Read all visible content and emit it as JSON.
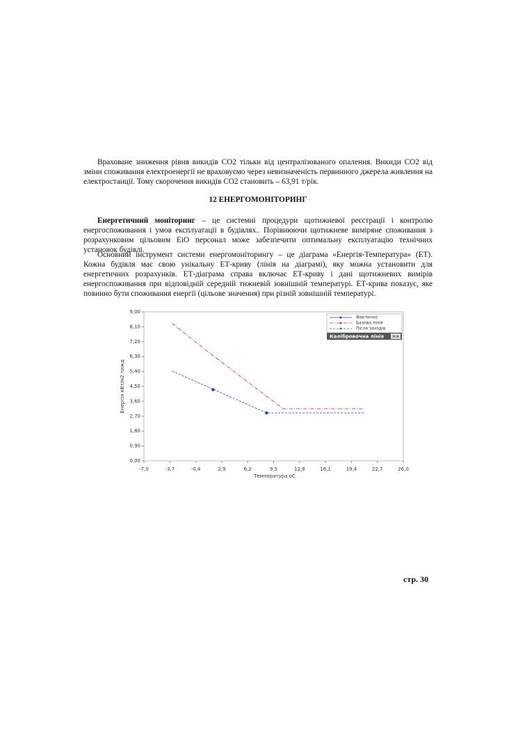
{
  "document": {
    "paragraph_1": "Враховане зниження рівня викидів СО2 тільки від централізованого опалення. Викиди СО2 від зміни споживання електроенергії не враховуємо через невизначеність первинного джерела живлення на електростанції. Тому скорочення викидів СО2 становить – 63,91 т/рік.",
    "heading": "12 ЕНЕРГОМОНІТОРИНГ",
    "paragraph_2_bold": "Енергетичний моніторинг",
    "paragraph_2": " – це системні процедури щотижневої реєстрації і контролю енергоспоживання і умов експлуатації в будівлях.. Порівнюючи щотижневе виміряне споживання з розрахунковим цільовим ЕіО персонал може забезпечити оптимальну експлуатацію технічних установок будівлі.",
    "paragraph_3": "Основний інструмент системи енергомоніторингу – це діаграма «Енергія-Температура» (ЕТ). Кожна будівля має свою унікальну ЕТ-криву (лінія на діаграмі), яку можна установити для енергетичних розрахунків. ЕТ-діаграма справа включає ЕТ-криву і дані щотижневих вимірів енергоспоживання при відповідній середній тижневій зовнішній температурі. ЕТ-крива показує, яке повинно бути споживання енергії (цільове значення) при різній зовнішній температурі.",
    "page_number": "стр. 30"
  },
  "chart_data": {
    "type": "line",
    "x_label": "Температура оС",
    "y_label": "Енергія кВт/м2 тижд",
    "legend_button": "Калібровочна лінія",
    "legend_button_arrow": ">>",
    "legend": "top-right",
    "grid": false,
    "xlim": [
      -7,
      26
    ],
    "ylim": [
      0,
      9
    ],
    "xticks": [
      {
        "value": -7,
        "label": "-7,0"
      },
      {
        "value": -3.7,
        "label": "-3,7"
      },
      {
        "value": -0.4,
        "label": "-0,4"
      },
      {
        "value": 2.9,
        "label": "2,9"
      },
      {
        "value": 6.2,
        "label": "6,2"
      },
      {
        "value": 9.5,
        "label": "9,5"
      },
      {
        "value": 12.8,
        "label": "12,8"
      },
      {
        "value": 16.1,
        "label": "16,1"
      },
      {
        "value": 19.4,
        "label": "19,4"
      },
      {
        "value": 22.7,
        "label": "22,7"
      },
      {
        "value": 26,
        "label": "26,0"
      }
    ],
    "yticks": [
      {
        "value": 0,
        "label": "0,00"
      },
      {
        "value": 0.9,
        "label": "0,90"
      },
      {
        "value": 1.8,
        "label": "1,80"
      },
      {
        "value": 2.7,
        "label": "2,70"
      },
      {
        "value": 3.6,
        "label": "3,60"
      },
      {
        "value": 4.5,
        "label": "4,50"
      },
      {
        "value": 5.4,
        "label": "5,40"
      },
      {
        "value": 6.3,
        "label": "6,30"
      },
      {
        "value": 7.2,
        "label": "7,20"
      },
      {
        "value": 8.1,
        "label": "8,10"
      },
      {
        "value": 9,
        "label": "9,00"
      }
    ],
    "series": [
      {
        "name": "Фактично",
        "color": "#1f3fbf",
        "mode": "markers",
        "x": [
          1.8,
          8.6
        ],
        "values": [
          4.3,
          2.9
        ]
      },
      {
        "name": "Базова лінія",
        "color": "#e03030",
        "mode": "lines",
        "dash": "5,2,1,2",
        "x": [
          -3.4,
          1.8,
          10.7,
          21.0
        ],
        "values": [
          8.3,
          6.35,
          3.15,
          3.15
        ]
      },
      {
        "name": "Після заходів",
        "color": "#3a4fd8",
        "mode": "lines",
        "dash": "3,2",
        "x": [
          -3.4,
          8.6,
          21.0
        ],
        "values": [
          5.42,
          2.9,
          2.9
        ]
      }
    ]
  }
}
